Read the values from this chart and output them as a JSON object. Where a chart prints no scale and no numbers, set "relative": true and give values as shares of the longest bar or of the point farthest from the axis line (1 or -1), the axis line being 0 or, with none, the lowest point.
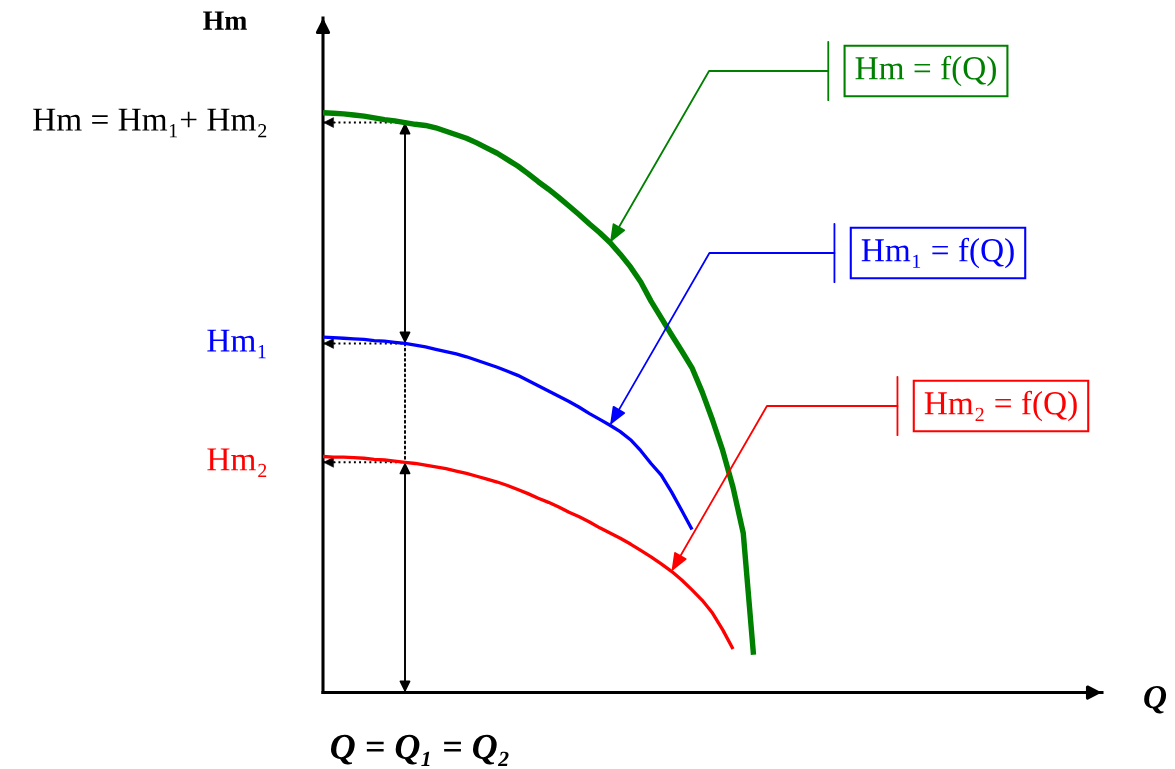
{
  "chart_data": {
    "type": "line",
    "relative": true,
    "xlabel": "Q",
    "ylabel": "Hm",
    "legend": "top right",
    "categories": [
      null,
      null,
      null,
      null,
      null,
      null,
      null,
      null,
      null,
      null,
      null,
      null,
      null,
      null,
      null,
      null,
      null,
      null,
      null,
      null,
      null,
      null,
      null,
      null,
      null,
      null,
      null,
      null,
      null,
      null,
      null,
      null,
      null,
      null,
      null,
      null,
      null,
      null,
      null,
      null,
      null,
      null,
      null,
      null,
      null,
      null,
      null,
      null,
      null,
      null,
      null,
      null,
      null,
      null,
      null,
      null,
      null,
      null,
      null,
      null,
      null,
      null,
      null,
      null,
      null,
      null,
      null,
      null,
      null,
      null,
      null,
      null,
      null,
      null,
      null,
      null,
      null
    ],
    "series": [
      {
        "name": "Hm = f(Q)",
        "color": "#008000",
        "values": [
          1.0,
          0.999,
          0.998,
          0.996,
          0.994,
          0.991,
          0.988,
          0.986,
          0.983,
          0.98,
          0.978,
          0.974,
          0.968,
          0.962,
          0.956,
          0.948,
          0.939,
          0.93,
          0.919,
          0.908,
          0.895,
          0.881,
          0.868,
          0.854,
          0.839,
          0.824,
          0.808,
          0.793,
          0.776,
          0.756,
          0.734,
          0.708,
          0.675,
          0.646,
          0.617,
          0.589,
          0.56,
          0.518,
          0.47,
          0.417,
          0.354,
          0.275,
          0.065,
          null,
          null,
          null,
          null,
          null,
          null,
          null,
          null,
          null,
          null,
          null,
          null,
          null,
          null,
          null,
          null,
          null,
          null,
          null,
          null,
          null,
          null,
          null,
          null,
          null,
          null,
          null,
          null,
          null,
          null,
          null,
          null,
          null,
          null
        ]
      },
      {
        "name": "Hm₁ = f(Q)",
        "color": "#0000ff",
        "values": [
          0.613,
          0.612,
          0.611,
          0.61,
          0.609,
          0.607,
          0.606,
          0.604,
          0.602,
          0.599,
          0.596,
          0.592,
          0.588,
          0.584,
          0.579,
          0.573,
          0.567,
          0.561,
          0.554,
          0.547,
          0.538,
          0.529,
          0.52,
          0.511,
          0.502,
          0.492,
          0.481,
          0.471,
          0.461,
          0.45,
          0.436,
          0.417,
          0.395,
          0.375,
          0.346,
          0.314,
          0.281,
          null,
          null,
          null,
          null,
          null,
          null,
          null,
          null,
          null,
          null,
          null,
          null,
          null,
          null,
          null,
          null,
          null,
          null,
          null,
          null,
          null,
          null,
          null,
          null,
          null,
          null,
          null,
          null,
          null,
          null,
          null,
          null,
          null,
          null,
          null,
          null,
          null,
          null,
          null,
          null
        ]
      },
      {
        "name": "Hm₂ = f(Q)",
        "color": "#ff0000",
        "values": [
          0.407,
          0.406,
          0.406,
          0.405,
          0.404,
          0.402,
          0.401,
          0.399,
          0.397,
          0.395,
          0.392,
          0.389,
          0.386,
          0.382,
          0.378,
          0.373,
          0.368,
          0.363,
          0.357,
          0.35,
          0.343,
          0.335,
          0.328,
          0.32,
          0.311,
          0.303,
          0.294,
          0.284,
          0.275,
          0.266,
          0.256,
          0.245,
          0.234,
          0.222,
          0.209,
          0.194,
          0.177,
          0.159,
          0.137,
          0.108,
          0.075,
          null,
          null,
          null,
          null,
          null,
          null,
          null,
          null,
          null,
          null,
          null,
          null,
          null,
          null,
          null,
          null,
          null,
          null,
          null,
          null,
          null,
          null,
          null,
          null,
          null,
          null,
          null,
          null,
          null,
          null,
          null,
          null,
          null,
          null,
          null,
          null
        ]
      }
    ],
    "ref_lines": [
      {
        "axis": "y",
        "value": 0.983,
        "label": "Hm = Hm₁+ Hm₂",
        "line_style": "dotted"
      },
      {
        "axis": "y",
        "value": 0.602,
        "label": "Hm₁",
        "line_style": "dotted"
      },
      {
        "axis": "y",
        "value": 0.397,
        "label": "Hm₂",
        "line_style": "dotted"
      }
    ],
    "annotations": [
      "Q = Q₁ = Q₂"
    ]
  }
}
